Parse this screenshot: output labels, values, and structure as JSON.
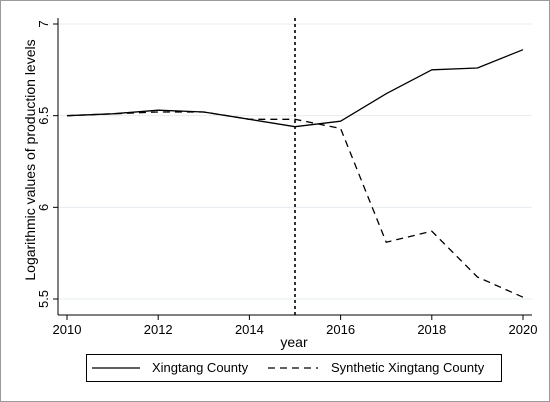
{
  "chart_data": {
    "type": "line",
    "xlabel": "year",
    "ylabel": "Logarithmic values of production levels",
    "xlim": [
      2010,
      2020
    ],
    "ylim": [
      5.5,
      7
    ],
    "x_ticks": [
      2010,
      2012,
      2014,
      2016,
      2018,
      2020
    ],
    "x_tick_labels": [
      "2010",
      "2012",
      "2014",
      "2016",
      "2018",
      "2020"
    ],
    "y_ticks": [
      5.5,
      6,
      6.5,
      7
    ],
    "y_tick_labels": [
      "5.5",
      "6",
      "6.5",
      "7"
    ],
    "grid": "horizontal",
    "vertical_reference_line": 2015,
    "legend_position": "bottom",
    "x": [
      2010,
      2011,
      2012,
      2013,
      2014,
      2015,
      2016,
      2017,
      2018,
      2019,
      2020
    ],
    "series": [
      {
        "name": "Xingtang County",
        "style": "solid",
        "color": "#000000",
        "values": [
          6.5,
          6.51,
          6.53,
          6.52,
          6.48,
          6.44,
          6.47,
          6.62,
          6.75,
          6.76,
          6.86
        ]
      },
      {
        "name": "Synthetic Xingtang County",
        "style": "dashed",
        "color": "#000000",
        "values": [
          6.5,
          6.51,
          6.52,
          6.52,
          6.48,
          6.48,
          6.43,
          5.81,
          5.87,
          5.62,
          5.51
        ]
      }
    ]
  }
}
